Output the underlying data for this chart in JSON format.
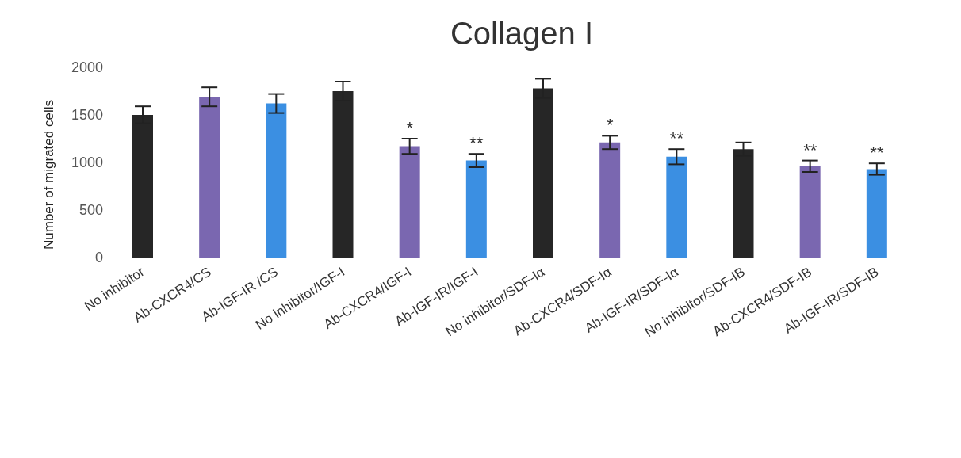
{
  "chart_data": {
    "type": "bar",
    "title": "Collagen I",
    "ylabel": "Number of migrated cells",
    "categories": [
      "No inhibitor",
      "Ab-CXCR4/CS",
      "Ab-IGF-IR /CS",
      "No inhibitor/IGF-I",
      "Ab-CXCR4/IGF-I",
      "Ab-IGF-IR/IGF-I",
      "No inhibitor/SDF-Iα",
      "Ab-CXCR4/SDF-Iα",
      "Ab-IGF-IR/SDF-Iα",
      "No inhibitor/SDF-IB",
      "Ab-CXCR4/SDF-IB",
      "Ab-IGF-IR/SDF-IB"
    ],
    "values": [
      1500,
      1690,
      1620,
      1750,
      1170,
      1020,
      1780,
      1210,
      1060,
      1140,
      960,
      930
    ],
    "errors": [
      90,
      100,
      100,
      100,
      80,
      70,
      100,
      70,
      80,
      70,
      60,
      60
    ],
    "colors": [
      "#262626",
      "#7a67b0",
      "#3b8fe2",
      "#262626",
      "#7a67b0",
      "#3b8fe2",
      "#262626",
      "#7a67b0",
      "#3b8fe2",
      "#262626",
      "#7a67b0",
      "#3b8fe2"
    ],
    "ylim": [
      0,
      2000
    ],
    "yticks": [
      0,
      500,
      1000,
      1500,
      2000
    ],
    "grid": false,
    "legend": false,
    "annotations": [
      {
        "text": "*",
        "x": "Ab-CXCR4/IGF-I",
        "y": 1170
      },
      {
        "text": "**",
        "x": "Ab-IGF-IR/IGF-I",
        "y": 1020
      },
      {
        "text": "*",
        "x": "Ab-CXCR4/SDF-Iα",
        "y": 1210
      },
      {
        "text": "**",
        "x": "Ab-IGF-IR/SDF-Iα",
        "y": 1060
      },
      {
        "text": "**",
        "x": "Ab-CXCR4/SDF-IB",
        "y": 960
      },
      {
        "text": "**",
        "x": "Ab-IGF-IR/SDF-IB",
        "y": 930
      }
    ]
  }
}
